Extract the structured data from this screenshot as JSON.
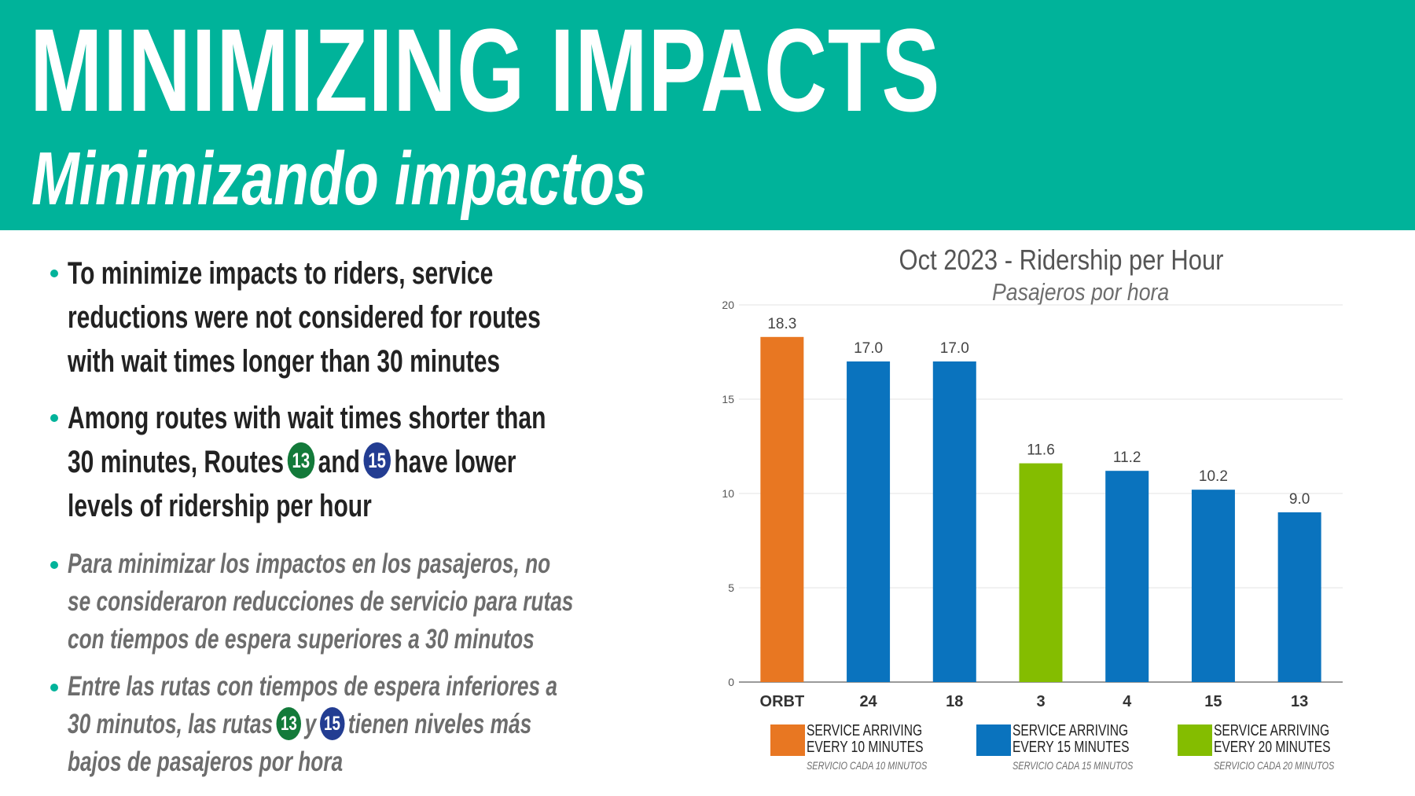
{
  "header": {
    "title": "MINIMIZING IMPACTS",
    "subtitle": "Minimizando impactos"
  },
  "bullets_en": [
    {
      "lines": [
        "To minimize impacts to riders, service",
        "reductions were not considered for routes",
        "with wait times longer than 30 minutes"
      ]
    },
    {
      "line1": "Among routes with wait times shorter than",
      "line2_pre": "30 minutes, Routes",
      "badge_a": "13",
      "line2_mid": "and",
      "badge_b": "15",
      "line2_post": "have lower",
      "line3": "levels of ridership per hour"
    }
  ],
  "bullets_es": [
    {
      "lines": [
        "Para minimizar los impactos en los pasajeros, no",
        "se consideraron reducciones de servicio para rutas",
        "con tiempos de espera superiores a 30 minutos"
      ]
    },
    {
      "line1": "Entre las rutas con tiempos de espera inferiores a",
      "line2_pre": "30 minutos, las rutas",
      "badge_a": "13",
      "line2_mid": "y",
      "badge_b": "15",
      "line2_post": "tienen niveles más",
      "line3": "bajos de pasajeros por hora"
    }
  ],
  "colors": {
    "banner": "#00b39a",
    "route_13_badge": "#137a3a",
    "route_15_badge": "#233d92",
    "every_10": "#e87722",
    "every_15": "#0a73be",
    "every_20": "#84bd00"
  },
  "chart_data": {
    "type": "bar",
    "title": "Oct 2023 - Ridership per Hour",
    "subtitle": "Pasajeros por hora",
    "categories": [
      "ORBT",
      "24",
      "18",
      "3",
      "4",
      "15",
      "13"
    ],
    "values": [
      18.3,
      17.0,
      17.0,
      11.6,
      11.2,
      10.2,
      9.0
    ],
    "value_labels": [
      "18.3",
      "17.0",
      "17.0",
      "11.6",
      "11.2",
      "10.2",
      "9.0"
    ],
    "service_group": [
      "every_10",
      "every_15",
      "every_15",
      "every_20",
      "every_15",
      "every_15",
      "every_15"
    ],
    "ylim": [
      0,
      20
    ],
    "yticks": [
      0,
      5,
      10,
      15,
      20
    ],
    "grid": true,
    "legend": [
      {
        "key": "every_10",
        "label_line1": "SERVICE ARRIVING",
        "label_line2": "EVERY 10 MINUTES",
        "label_es": "SERVICIO CADA 10 MINUTOS"
      },
      {
        "key": "every_15",
        "label_line1": "SERVICE ARRIVING",
        "label_line2": "EVERY 15 MINUTES",
        "label_es": "SERVICIO CADA 15 MINUTOS"
      },
      {
        "key": "every_20",
        "label_line1": "SERVICE ARRIVING",
        "label_line2": "EVERY 20 MINUTES",
        "label_es": "SERVICIO CADA 20 MINUTOS"
      }
    ],
    "legend_position": "bottom"
  }
}
